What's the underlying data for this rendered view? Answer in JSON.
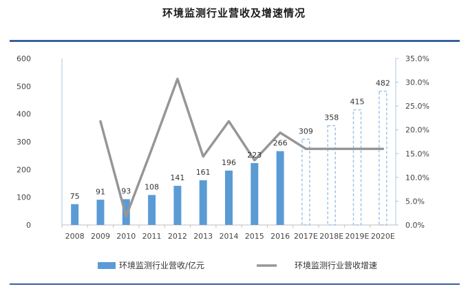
{
  "title": "环境监测行业营收及增速情况",
  "chart_data": {
    "type": "bar",
    "title": "环境监测行业营收及增速情况",
    "categories": [
      "2008",
      "2009",
      "2010",
      "2011",
      "2012",
      "2013",
      "2014",
      "2015",
      "2016",
      "2017E",
      "2018E",
      "2019E",
      "2020E"
    ],
    "y_left": {
      "ylim": [
        0,
        600
      ],
      "ticks": [
        "0",
        "100",
        "200",
        "300",
        "400",
        "500",
        "600"
      ]
    },
    "y_right": {
      "ylim": [
        0,
        35
      ],
      "ticks": [
        "0.0%",
        "5.0%",
        "10.0%",
        "15.0%",
        "20.0%",
        "25.0%",
        "30.0%",
        "35.0%"
      ]
    },
    "series": [
      {
        "name": "环境监测行业营收/亿元",
        "type": "bar",
        "axis": "left",
        "values": [
          75,
          91,
          93,
          108,
          141,
          161,
          196,
          223,
          266,
          309,
          358,
          415,
          482
        ],
        "labels": [
          "75",
          "91",
          "93",
          "108",
          "141",
          "161",
          "196",
          "223",
          "266",
          "309",
          "358",
          "415",
          "482"
        ],
        "projected_from_index": 9,
        "color": "#5b9bd5"
      },
      {
        "name": "环境监测行业营收增速",
        "type": "line",
        "axis": "right",
        "values": [
          null,
          21.8,
          1.8,
          16.0,
          30.7,
          14.4,
          21.8,
          13.6,
          19.4,
          16.0,
          16.0,
          16.0,
          16.0
        ],
        "color": "#969696"
      }
    ],
    "grid": false,
    "legend_position": "bottom"
  }
}
